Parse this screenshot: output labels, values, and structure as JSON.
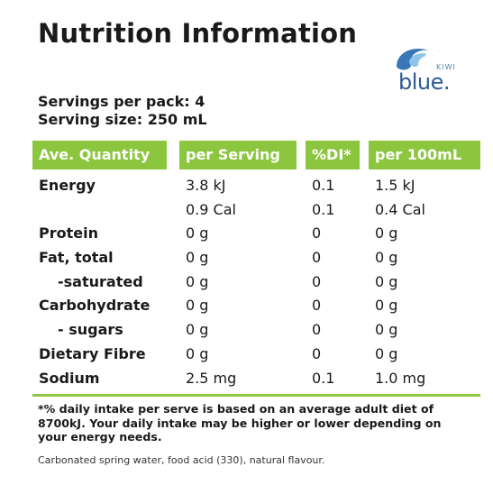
{
  "title": "Nutrition Information",
  "logo": {
    "small_text": "KIWI",
    "brand_text": "blue."
  },
  "servings_per_pack": "Servings per pack: 4",
  "serving_size": "Serving size: 250 mL",
  "table": {
    "headers": [
      "Ave. Quantity",
      "per Serving",
      "%DI*",
      "per 100mL"
    ],
    "rows": [
      {
        "name": "Energy",
        "per_serving": "3.8 kJ",
        "di": "0.1",
        "per_100ml": "1.5 kJ",
        "indent": false
      },
      {
        "name": "",
        "per_serving": "0.9 Cal",
        "di": "0.1",
        "per_100ml": "0.4 Cal",
        "indent": false
      },
      {
        "name": "Protein",
        "per_serving": "0 g",
        "di": "0",
        "per_100ml": "0 g",
        "indent": false
      },
      {
        "name": "Fat, total",
        "per_serving": "0 g",
        "di": "0",
        "per_100ml": "0 g",
        "indent": false
      },
      {
        "name": "-saturated",
        "per_serving": "0 g",
        "di": "0",
        "per_100ml": "0 g",
        "indent": true
      },
      {
        "name": "Carbohydrate",
        "per_serving": "0 g",
        "di": "0",
        "per_100ml": "0 g",
        "indent": false
      },
      {
        "name": "- sugars",
        "per_serving": "0 g",
        "di": "0",
        "per_100ml": "0 g",
        "indent": true
      },
      {
        "name": "Dietary Fibre",
        "per_serving": "0 g",
        "di": "0",
        "per_100ml": "0 g",
        "indent": false
      },
      {
        "name": "Sodium",
        "per_serving": "2.5 mg",
        "di": "0.1",
        "per_100ml": "1.0 mg",
        "indent": false
      }
    ]
  },
  "footnote": "*% daily intake per serve is based on an average adult diet of 8700kJ. Your daily intake may be higher or lower depending on your energy needs.",
  "ingredients": "Carbonated spring water, food acid (330), natural flavour.",
  "colors": {
    "accent": "#8cc63f",
    "brand_blue": "#2f5b93"
  }
}
